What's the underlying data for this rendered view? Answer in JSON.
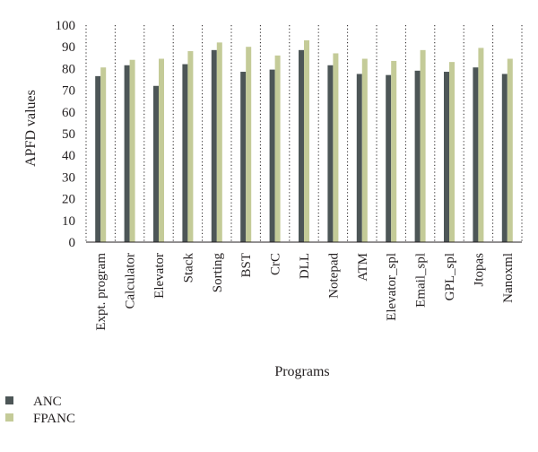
{
  "chart_data": {
    "type": "bar",
    "title": "",
    "xlabel": "Programs",
    "ylabel": "APFD values",
    "ylim": [
      0,
      100
    ],
    "yticks": [
      0,
      10,
      20,
      30,
      40,
      50,
      60,
      70,
      80,
      90,
      100
    ],
    "grid": "vertical dotted",
    "legend_position": "bottom-left",
    "categories": [
      "Expt. program",
      "Calculator",
      "Elevator",
      "Stack",
      "Sorting",
      "BST",
      "CrC",
      "DLL",
      "Notepad",
      "ATM",
      "Elevator_spl",
      "Email_spl",
      "GPL_spl",
      "Jtopas",
      "Nanoxml"
    ],
    "series": [
      {
        "name": "ANC",
        "color": "#4d5657",
        "values": [
          76.5,
          81.5,
          72,
          82,
          88.5,
          78.5,
          79.5,
          88.5,
          81.5,
          77.5,
          77,
          79,
          78.5,
          80.5,
          77.5
        ]
      },
      {
        "name": "FPANC",
        "color": "#c4cb98",
        "values": [
          80.5,
          84,
          84.5,
          88,
          92,
          90,
          86,
          93,
          87,
          84.5,
          83.5,
          88.5,
          83,
          89.5,
          84.5
        ]
      }
    ]
  }
}
